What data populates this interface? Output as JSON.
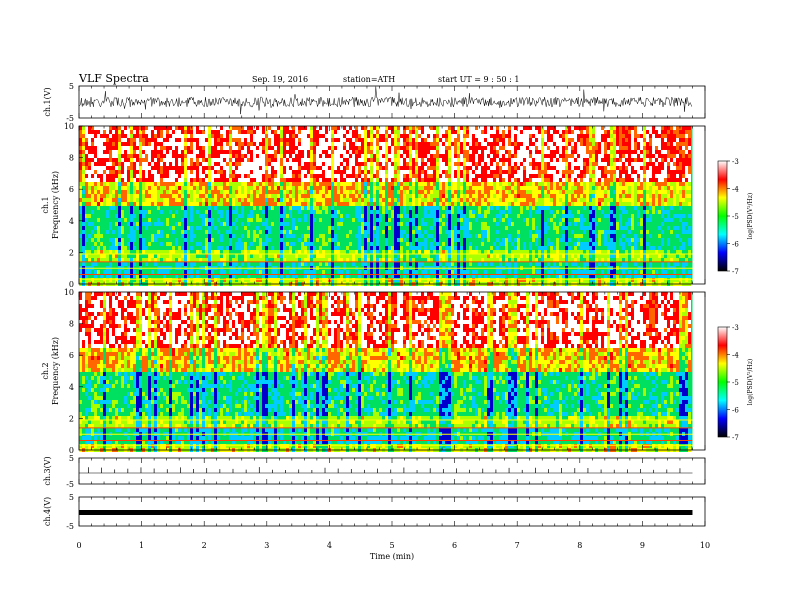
{
  "chart_data": {
    "type": "heatmap",
    "header": {
      "title": "VLF  Spectra",
      "date": "Sep. 19, 2016",
      "station": "station=ATH",
      "start": "start  UT  =   9  : 50 : 1"
    },
    "time_axis": {
      "label": "Time  (min)",
      "range": [
        0,
        10
      ],
      "ticks": [
        "0",
        "1",
        "2",
        "3",
        "4",
        "5",
        "6",
        "7",
        "8",
        "9",
        "10"
      ]
    },
    "panels": [
      {
        "id": "ch1-wave",
        "ylabel": "ch.1(V)",
        "ylim": [
          -5,
          5
        ],
        "ticks": [
          "5",
          "-5"
        ]
      },
      {
        "id": "ch1-spec",
        "ylabel_top": "ch.1",
        "ylabel": "Frequency  (kHz)",
        "ylim": [
          0,
          10
        ],
        "ticks": [
          "0",
          "2",
          "4",
          "6",
          "8",
          "10"
        ],
        "cbar_ticks": [
          "-3",
          "-4",
          "-5",
          "-6",
          "-7"
        ],
        "cbar_label": "log(PSD(V²/Hz)"
      },
      {
        "id": "ch2-spec",
        "ylabel_top": "ch.2",
        "ylabel": "Frequency  (kHz)",
        "ylim": [
          0,
          10
        ],
        "ticks": [
          "0",
          "2",
          "4",
          "6",
          "8",
          "10"
        ],
        "cbar_ticks": [
          "-3",
          "-4",
          "-5",
          "-6",
          "-7"
        ],
        "cbar_label": "log(PSD(V²/Hz)"
      },
      {
        "id": "ch3-wave",
        "ylabel": "ch.3(V)",
        "ylim": [
          -5,
          5
        ],
        "ticks": [
          "5",
          "-5"
        ]
      },
      {
        "id": "ch4-wave",
        "ylabel": "ch.4(V)",
        "ylim": [
          -5,
          5
        ],
        "ticks": [
          "5",
          "-5"
        ]
      }
    ],
    "colorbar": {
      "range": [
        -7,
        -3
      ],
      "colors": [
        "#000000",
        "#0000ff",
        "#00ffff",
        "#00ff00",
        "#ffff00",
        "#ff0000",
        "#ffffff"
      ]
    },
    "data_end_min": 9.8
  }
}
